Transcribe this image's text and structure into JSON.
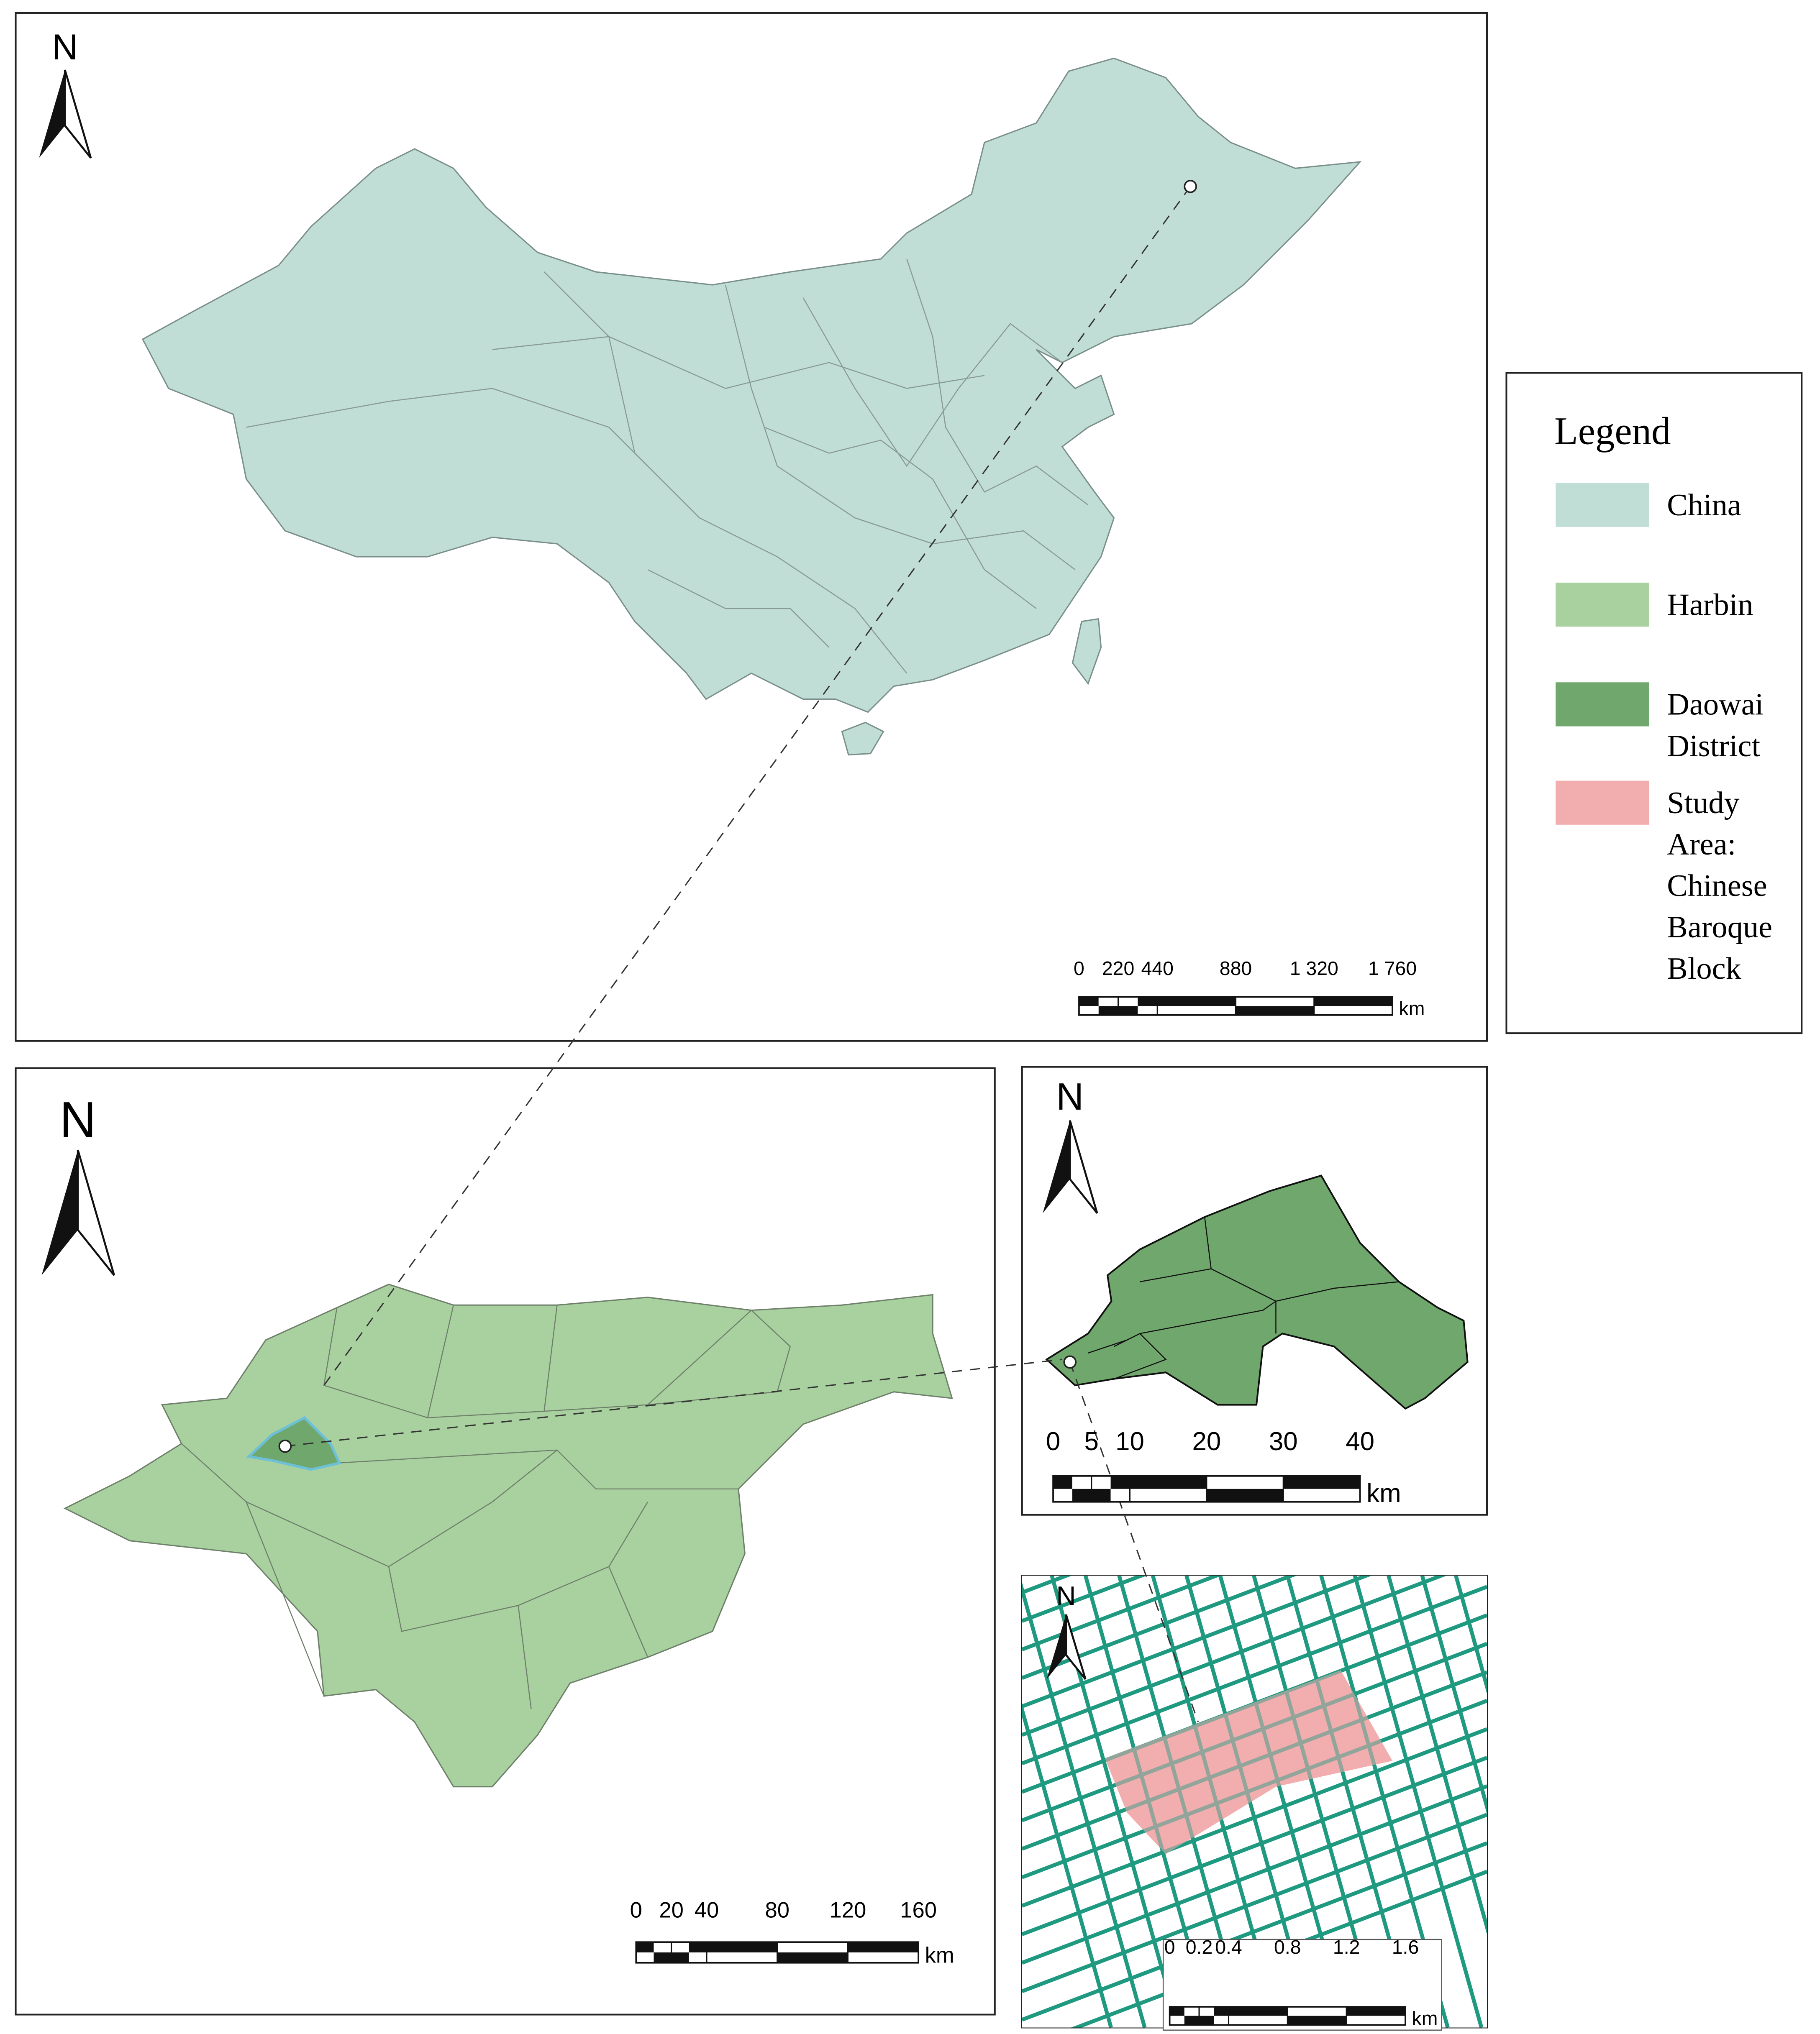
{
  "panels": [
    {
      "name": "China",
      "north": "N",
      "scale_bar": {
        "ticks": [
          0,
          220,
          440,
          880,
          {
            "value": 1320,
            "label": "1 320"
          },
          {
            "value": 1760,
            "label": "1 760"
          }
        ],
        "unit": "km"
      }
    },
    {
      "name": "Harbin",
      "north": "N",
      "scale_bar": {
        "ticks": [
          0,
          20,
          40,
          80,
          120,
          160
        ],
        "unit": "km"
      }
    },
    {
      "name": "Daowai District",
      "north": "N",
      "scale_bar": {
        "ticks": [
          0,
          5,
          10,
          20,
          30,
          40
        ],
        "unit": "km"
      }
    },
    {
      "name": "Study Area",
      "north": "N",
      "scale_bar": {
        "ticks": [
          0,
          0.2,
          0.4,
          0.8,
          1.2,
          1.6
        ],
        "unit": "km"
      }
    }
  ],
  "legend": {
    "title": "Legend",
    "items": [
      {
        "label": "China",
        "color": "#c0ded6"
      },
      {
        "label": "Harbin",
        "color": "#a9d19f"
      },
      {
        "label": "Daowai District",
        "color": "#6fa76c"
      },
      {
        "label": "Study Area: Chinese Baroque Block",
        "color": "#f2aeae"
      }
    ]
  }
}
